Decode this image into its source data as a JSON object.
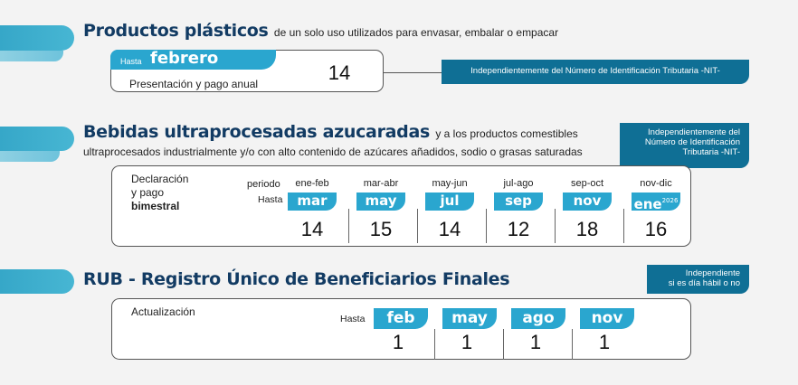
{
  "section1": {
    "title": "Productos plásticos",
    "title_rest": "de un solo uso utilizados para envasar, embalar o empacar",
    "hasta_label": "Hasta",
    "month": "febrero",
    "day": "14",
    "subtitle": "Presentación y pago anual",
    "banner": "Independientemente del Número de Identificación Tributaria -NIT-"
  },
  "section2": {
    "title": "Bebidas ultraprocesadas azucaradas",
    "title_rest": "y a los productos comestibles",
    "line2": "ultraprocesados industrialmente y/o con alto contenido de azúcares añadidos, sodio o grasas saturadas",
    "banner_line1": "Independientemente del",
    "banner_line2": "Número de Identificación",
    "banner_line3": "Tributaria -NIT-",
    "left_line1": "Declaración",
    "left_line2": "y pago",
    "left_line3": "bimestral",
    "periodo_label": "periodo",
    "hasta_label": "Hasta",
    "columns": [
      {
        "periodo": "ene-feb",
        "month": "mar",
        "day": "14"
      },
      {
        "periodo": "mar-abr",
        "month": "may",
        "day": "15"
      },
      {
        "periodo": "may-jun",
        "month": "jul",
        "day": "14"
      },
      {
        "periodo": "jul-ago",
        "month": "sep",
        "day": "12"
      },
      {
        "periodo": "sep-oct",
        "month": "nov",
        "day": "18"
      },
      {
        "periodo": "nov-dic",
        "month": "ene",
        "month_sup": "2026",
        "day": "16"
      }
    ]
  },
  "section3": {
    "title": "RUB - Registro Único de Beneficiarios Finales",
    "banner_line1": "Independiente",
    "banner_line2": "si es día hábil o no",
    "left_label": "Actualización",
    "hasta_label": "Hasta",
    "columns": [
      {
        "month": "feb",
        "day": "1"
      },
      {
        "month": "may",
        "day": "1"
      },
      {
        "month": "ago",
        "day": "1"
      },
      {
        "month": "nov",
        "day": "1"
      }
    ]
  },
  "colors": {
    "accent": "#36a7c8",
    "tag": "#2aa6cf",
    "banner": "#0f6f95",
    "title": "#123b63"
  }
}
